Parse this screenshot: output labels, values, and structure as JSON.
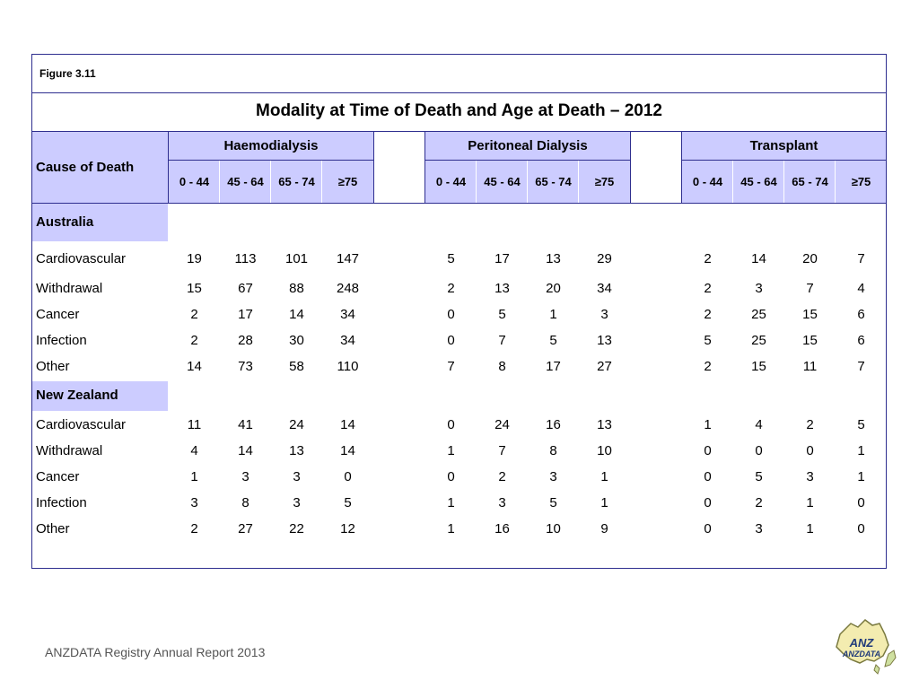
{
  "figure_label": "Figure 3.11",
  "footer": "ANZDATA Registry Annual Report 2013",
  "logo_text": "ANZDATA",
  "chart_data": {
    "type": "table",
    "title": "Modality at Time of Death and Age at Death – 2012",
    "row_header": "Cause of Death",
    "modalities": [
      {
        "name": "Haemodialysis",
        "age_groups": [
          "0 - 44",
          "45 - 64",
          "65 - 74",
          "≥75"
        ]
      },
      {
        "name": "Peritoneal Dialysis",
        "age_groups": [
          "0 - 44",
          "45 - 64",
          "65 - 74",
          "≥75"
        ]
      },
      {
        "name": "Transplant",
        "age_groups": [
          "0 - 44",
          "45 - 64",
          "65 - 74",
          "≥75"
        ]
      }
    ],
    "sections": [
      {
        "name": "Australia",
        "rows": [
          {
            "cause": "Cardiovascular",
            "values": [
              19,
              113,
              101,
              147,
              5,
              17,
              13,
              29,
              2,
              14,
              20,
              7
            ]
          },
          {
            "cause": "Withdrawal",
            "values": [
              15,
              67,
              88,
              248,
              2,
              13,
              20,
              34,
              2,
              3,
              7,
              4
            ]
          },
          {
            "cause": "Cancer",
            "values": [
              2,
              17,
              14,
              34,
              0,
              5,
              1,
              3,
              2,
              25,
              15,
              6
            ]
          },
          {
            "cause": "Infection",
            "values": [
              2,
              28,
              30,
              34,
              0,
              7,
              5,
              13,
              5,
              25,
              15,
              6
            ]
          },
          {
            "cause": "Other",
            "values": [
              14,
              73,
              58,
              110,
              7,
              8,
              17,
              27,
              2,
              15,
              11,
              7
            ]
          }
        ]
      },
      {
        "name": "New Zealand",
        "rows": [
          {
            "cause": "Cardiovascular",
            "values": [
              11,
              41,
              24,
              14,
              0,
              24,
              16,
              13,
              1,
              4,
              2,
              5
            ]
          },
          {
            "cause": "Withdrawal",
            "values": [
              4,
              14,
              13,
              14,
              1,
              7,
              8,
              10,
              0,
              0,
              0,
              1
            ]
          },
          {
            "cause": "Cancer",
            "values": [
              1,
              3,
              3,
              0,
              0,
              2,
              3,
              1,
              0,
              5,
              3,
              1
            ]
          },
          {
            "cause": "Infection",
            "values": [
              3,
              8,
              3,
              5,
              1,
              3,
              5,
              1,
              0,
              2,
              1,
              0
            ]
          },
          {
            "cause": "Other",
            "values": [
              2,
              27,
              22,
              12,
              1,
              16,
              10,
              9,
              0,
              3,
              1,
              0
            ]
          }
        ]
      }
    ]
  }
}
